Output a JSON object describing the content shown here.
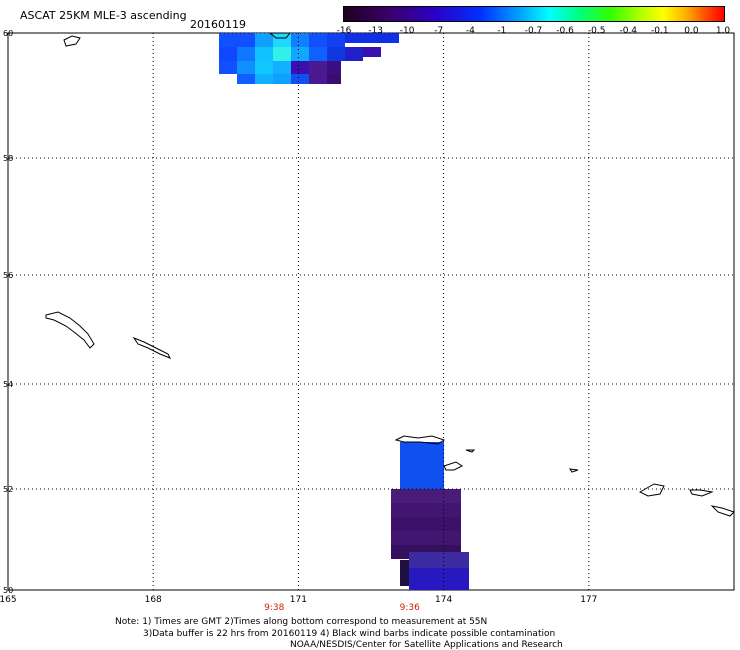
{
  "header": {
    "title": "ASCAT 25KM MLE-3 ascending",
    "date": "20160119"
  },
  "colorbar": {
    "labels": [
      "-16",
      "-13",
      "-10",
      "-7",
      "-4",
      "-1",
      "-0.7",
      "-0.6",
      "-0.5",
      "-0.4",
      "-0.1",
      "0.0",
      "1.0"
    ]
  },
  "map": {
    "lon_min": 165,
    "lon_max": 180,
    "lat_min": 50,
    "lat_max": 60,
    "lon_ticks": [
      "165",
      "168",
      "171",
      "174",
      "177"
    ],
    "lat_ticks": [
      "50",
      "52",
      "54",
      "56",
      "58",
      "60"
    ],
    "pass_times": [
      {
        "label": "9:38",
        "lon": 170.5
      },
      {
        "label": "9:36",
        "lon": 173.3
      }
    ]
  },
  "notes": {
    "line1": "Note: 1) Times are GMT 2)Times along bottom correspond to measurement at 55N",
    "line2": "3)Data buffer is 22 hrs from 20160119 4) Black wind barbs indicate possible contamination",
    "line3": "NOAA/NESDIS/Center for Satellite Applications and Research"
  },
  "colors": {
    "grid": "#000000",
    "time_label": "#cc2200",
    "coast": "#000000"
  }
}
